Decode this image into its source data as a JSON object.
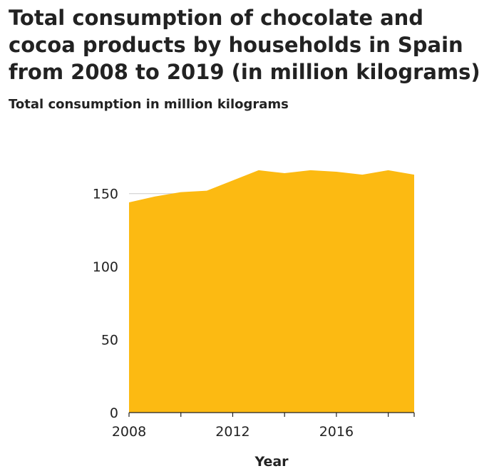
{
  "chart_data": {
    "type": "area",
    "title": "Total consumption of chocolate and cocoa products by households in Spain from 2008 to 2019 (in million kilograms)",
    "ylabel": "Total consumption in million kilograms",
    "xlabel": "Year",
    "x": [
      2008,
      2009,
      2010,
      2011,
      2012,
      2013,
      2014,
      2015,
      2016,
      2017,
      2018,
      2019
    ],
    "values": [
      144,
      148,
      151,
      152,
      159,
      166,
      164,
      166,
      165,
      163,
      166,
      163
    ],
    "xlim": [
      2008,
      2019
    ],
    "ylim": [
      0,
      185
    ],
    "yticks": [
      0,
      50,
      100,
      150
    ],
    "xticks": [
      2008,
      2010,
      2012,
      2014,
      2016,
      2018
    ],
    "xtick_labels": [
      "2008",
      "",
      "2012",
      "",
      "2016",
      ""
    ],
    "color": "#FCBA12",
    "grid": "horizontal"
  }
}
